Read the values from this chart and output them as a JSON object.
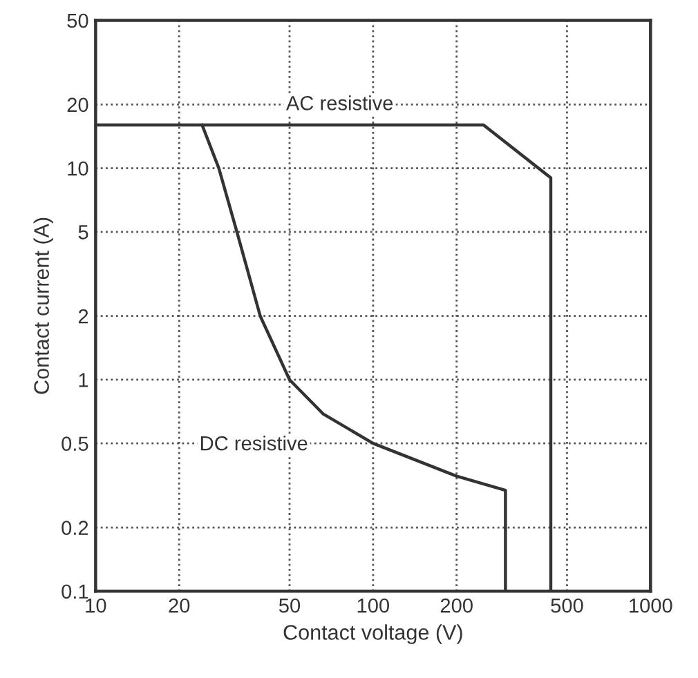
{
  "chart_data": {
    "type": "line",
    "xlabel": "Contact voltage (V)",
    "ylabel": "Contact current (A)",
    "log": "xy",
    "series": [
      {
        "color": "#333333",
        "x": [
          10,
          250,
          437,
          437
        ],
        "values": [
          16,
          16,
          9,
          0.1
        ]
      },
      {
        "color": "#333333",
        "x": [
          24.2,
          27.8,
          32.3,
          39.2,
          50,
          66,
          100,
          200,
          300,
          300
        ],
        "values": [
          16,
          10,
          5,
          2,
          1,
          0.69,
          0.5,
          0.35,
          0.3,
          0.1
        ]
      }
    ],
    "annotations": [
      "AC resistive",
      "DC resistive"
    ],
    "xlim": [
      10,
      1000
    ],
    "xticks": [
      10,
      20,
      50,
      100,
      200,
      500,
      1000
    ],
    "ylim": [
      0.1,
      50
    ],
    "yticks": [
      0.1,
      0.2,
      0.5,
      1,
      2,
      5,
      10,
      20,
      50
    ],
    "grid": true,
    "marker": "none",
    "line_style": "solid"
  }
}
